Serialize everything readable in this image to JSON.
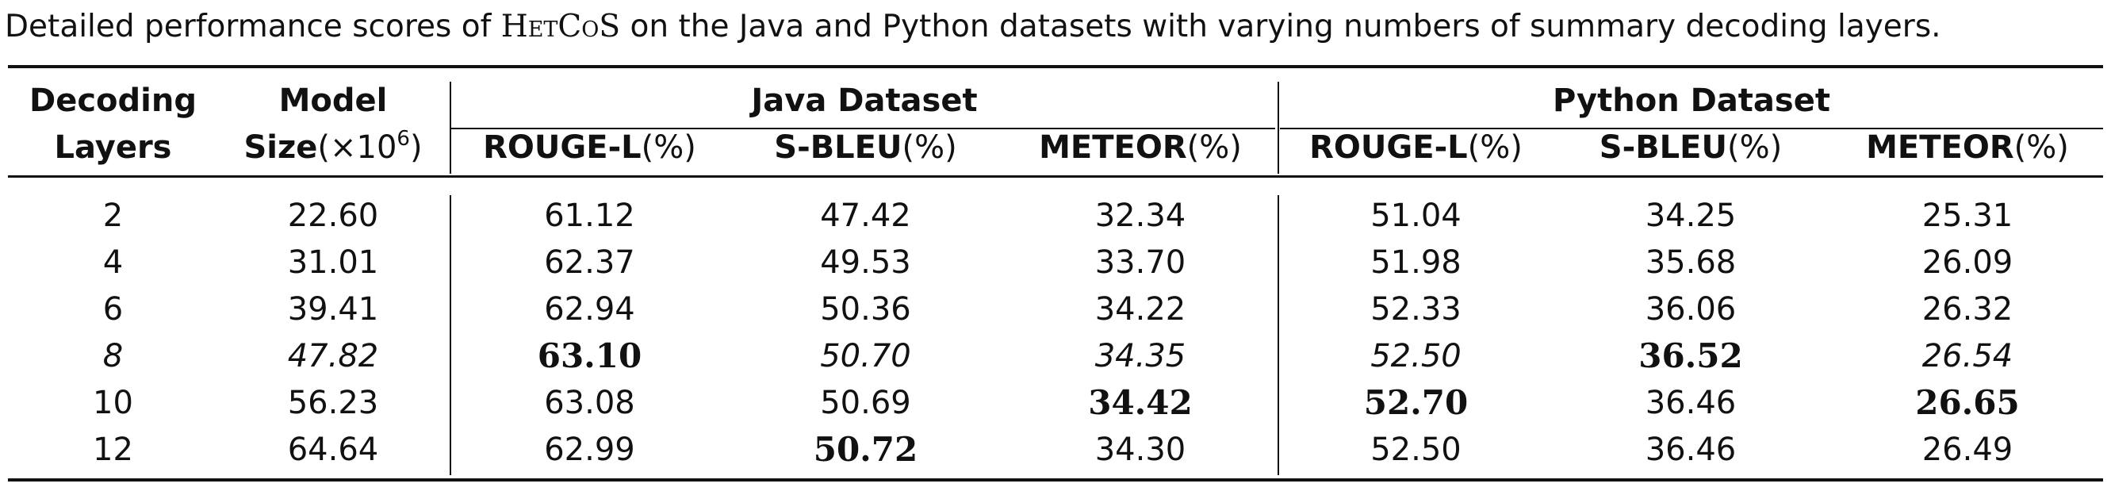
{
  "caption": {
    "prefix": "Detailed performance scores of ",
    "model": "HetCoS",
    "suffix": " on the Java and Python datasets with varying numbers of summary decoding layers."
  },
  "header": {
    "col1_line1": "Decoding",
    "col1_line2": "Layers",
    "col2_line1": "Model",
    "col2_size": "Size",
    "col2_unit": "(×10",
    "col2_exp": "6",
    "col2_close": ")",
    "java": "Java Dataset",
    "python": "Python Dataset",
    "metrics": [
      {
        "name": "ROUGE-L",
        "unit": "(%)"
      },
      {
        "name": "S-BLEU",
        "unit": "(%)"
      },
      {
        "name": "METEOR",
        "unit": "(%)"
      },
      {
        "name": "ROUGE-L",
        "unit": "(%)"
      },
      {
        "name": "S-BLEU",
        "unit": "(%)"
      },
      {
        "name": "METEOR",
        "unit": "(%)"
      }
    ]
  },
  "rows": [
    {
      "cells": [
        "2",
        "22.60",
        "61.12",
        "47.42",
        "32.34",
        "51.04",
        "34.25",
        "25.31"
      ]
    },
    {
      "cells": [
        "4",
        "31.01",
        "62.37",
        "49.53",
        "33.70",
        "51.98",
        "35.68",
        "26.09"
      ]
    },
    {
      "cells": [
        "6",
        "39.41",
        "62.94",
        "50.36",
        "34.22",
        "52.33",
        "36.06",
        "26.32"
      ]
    },
    {
      "cells": [
        "8",
        "47.82",
        "63.10",
        "50.70",
        "34.35",
        "52.50",
        "36.52",
        "26.54"
      ]
    },
    {
      "cells": [
        "10",
        "56.23",
        "63.08",
        "50.69",
        "34.42",
        "52.70",
        "36.46",
        "26.65"
      ]
    },
    {
      "cells": [
        "12",
        "64.64",
        "62.99",
        "50.72",
        "34.30",
        "52.50",
        "36.46",
        "26.49"
      ]
    }
  ]
}
